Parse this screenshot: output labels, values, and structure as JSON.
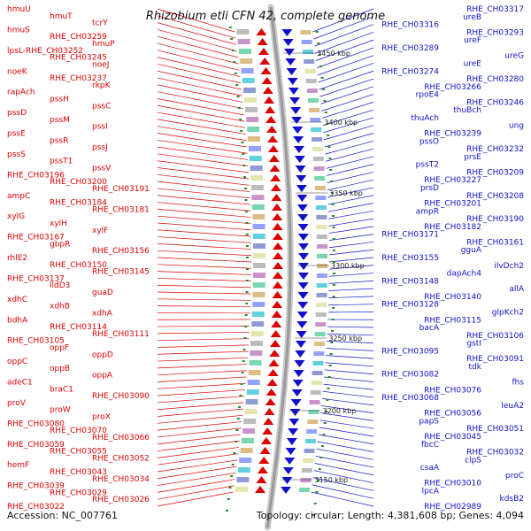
{
  "title": "Rhizobium etli CFN 42, complete genome",
  "accession": "Accession: NC_007761",
  "summary": "Topology: circular; Length: 4,381,608 bp; Genes: 4,094",
  "colors": {
    "forward": "#dd0000",
    "reverse": "#1010cc",
    "backbone": "#9a9a9a",
    "tick": "#2a8a2a"
  },
  "kbp_marks": [
    "3450 kbp",
    "3400 kbp",
    "3350 kbp",
    "3300 kbp",
    "3250 kbp",
    "3200 kbp",
    "3150 kbp"
  ],
  "left_labels": [
    {
      "text": "hmuU"
    },
    {
      "text": "hmuT"
    },
    {
      "text": "tcrY"
    },
    {
      "text": "hmuS"
    },
    {
      "text": "RHE_CH03259"
    },
    {
      "text": "hmuP"
    },
    {
      "text": "lpsL-RHE_CH03252"
    },
    {
      "text": "RHE_CH03245"
    },
    {
      "text": "noeJ"
    },
    {
      "text": "noeK"
    },
    {
      "text": "RHE_CH03237"
    },
    {
      "text": "rkpK"
    },
    {
      "text": "rapAch"
    },
    {
      "text": "pssH"
    },
    {
      "text": "pssC"
    },
    {
      "text": "pssD"
    },
    {
      "text": "pssM"
    },
    {
      "text": "pssI"
    },
    {
      "text": "pssE"
    },
    {
      "text": "pssR"
    },
    {
      "text": "pssJ"
    },
    {
      "text": "pssS"
    },
    {
      "text": "pssT1"
    },
    {
      "text": "pssV"
    },
    {
      "text": "RHE_CH03196"
    },
    {
      "text": "RHE_CH03200"
    },
    {
      "text": "RHE_CH03191"
    },
    {
      "text": "ampC"
    },
    {
      "text": "RHE_CH03184"
    },
    {
      "text": "RHE_CH03181"
    },
    {
      "text": "xylG"
    },
    {
      "text": "xylH"
    },
    {
      "text": "xylF"
    },
    {
      "text": "RHE_CH03167"
    },
    {
      "text": "gbpR"
    },
    {
      "text": "RHE_CH03156"
    },
    {
      "text": "rhlE2"
    },
    {
      "text": "RHE_CH03150"
    },
    {
      "text": "RHE_CH03145"
    },
    {
      "text": "RHE_CH03137"
    },
    {
      "text": "lldD3"
    },
    {
      "text": "guaD"
    },
    {
      "text": "xdhC"
    },
    {
      "text": "xdhB"
    },
    {
      "text": "xdhA"
    },
    {
      "text": "bdhA"
    },
    {
      "text": "RHE_CH03114"
    },
    {
      "text": "RHE_CH03111"
    },
    {
      "text": "RHE_CH03105"
    },
    {
      "text": "oppF"
    },
    {
      "text": "oppD"
    },
    {
      "text": "oppC"
    },
    {
      "text": "oppB"
    },
    {
      "text": "oppA"
    },
    {
      "text": "adeC1"
    },
    {
      "text": "braC1"
    },
    {
      "text": "RHE_CH03090"
    },
    {
      "text": "proV"
    },
    {
      "text": "proW"
    },
    {
      "text": "proX"
    },
    {
      "text": "RHE_CH03080"
    },
    {
      "text": "RHE_CH03070"
    },
    {
      "text": "RHE_CH03066"
    },
    {
      "text": "RHE_CH03059"
    },
    {
      "text": "RHE_CH03055"
    },
    {
      "text": "RHE_CH03052"
    },
    {
      "text": "hemF"
    },
    {
      "text": "RHE_CH03043"
    },
    {
      "text": "RHE_CH03034"
    },
    {
      "text": "RHE_CH03039"
    },
    {
      "text": "RHE_CH03029"
    },
    {
      "text": "RHE_CH03026"
    },
    {
      "text": "RHE_CH03022"
    }
  ],
  "right_labels": [
    {
      "text": "RHE_CH03317"
    },
    {
      "text": "ureB"
    },
    {
      "text": "RHE_CH03316"
    },
    {
      "text": "RHE_CH03293"
    },
    {
      "text": "ureF"
    },
    {
      "text": "RHE_CH03289"
    },
    {
      "text": "ureG"
    },
    {
      "text": "ureE"
    },
    {
      "text": "RHE_CH03274"
    },
    {
      "text": "RHE_CH03280"
    },
    {
      "text": "RHE_CH03266"
    },
    {
      "text": "rpoE4"
    },
    {
      "text": "RHE_CH03246"
    },
    {
      "text": "thuBch"
    },
    {
      "text": "thuAch"
    },
    {
      "text": "ung"
    },
    {
      "text": "RHE_CH03239"
    },
    {
      "text": "pssO"
    },
    {
      "text": "RHE_CH03232"
    },
    {
      "text": "prsE"
    },
    {
      "text": "pssT2"
    },
    {
      "text": "RHE_CH03209"
    },
    {
      "text": "RHE_CH03227"
    },
    {
      "text": "prsD"
    },
    {
      "text": "RHE_CH03208"
    },
    {
      "text": "RHE_CH03201"
    },
    {
      "text": "ampR"
    },
    {
      "text": "RHE_CH03190"
    },
    {
      "text": "RHE_CH03182"
    },
    {
      "text": "RHE_CH03171"
    },
    {
      "text": "RHE_CH03161"
    },
    {
      "text": "gguA"
    },
    {
      "text": "RHE_CH03155"
    },
    {
      "text": "ilvDch2"
    },
    {
      "text": "dapAch4"
    },
    {
      "text": "RHE_CH03148"
    },
    {
      "text": "allA"
    },
    {
      "text": "RHE_CH03140"
    },
    {
      "text": "RHE_CH03128"
    },
    {
      "text": "glpKch2"
    },
    {
      "text": "RHE_CH03115"
    },
    {
      "text": "bacA"
    },
    {
      "text": "RHE_CH03106"
    },
    {
      "text": "gstI"
    },
    {
      "text": "RHE_CH03095"
    },
    {
      "text": "RHE_CH03091"
    },
    {
      "text": "tdk"
    },
    {
      "text": "RHE_CH03082"
    },
    {
      "text": "fhs"
    },
    {
      "text": "RHE_CH03076"
    },
    {
      "text": "RHE_CH03068"
    },
    {
      "text": "leuA2"
    },
    {
      "text": "RHE_CH03056"
    },
    {
      "text": "papS"
    },
    {
      "text": "RHE_CH03051"
    },
    {
      "text": "RHE_CH03045"
    },
    {
      "text": "fbcC"
    },
    {
      "text": "RHE_CH03032"
    },
    {
      "text": "clpS"
    },
    {
      "text": "csaA"
    },
    {
      "text": "proC"
    },
    {
      "text": "RHE_CH03010"
    },
    {
      "text": "lpcA"
    },
    {
      "text": "kdsB2"
    },
    {
      "text": "RHE_CH02989"
    }
  ]
}
